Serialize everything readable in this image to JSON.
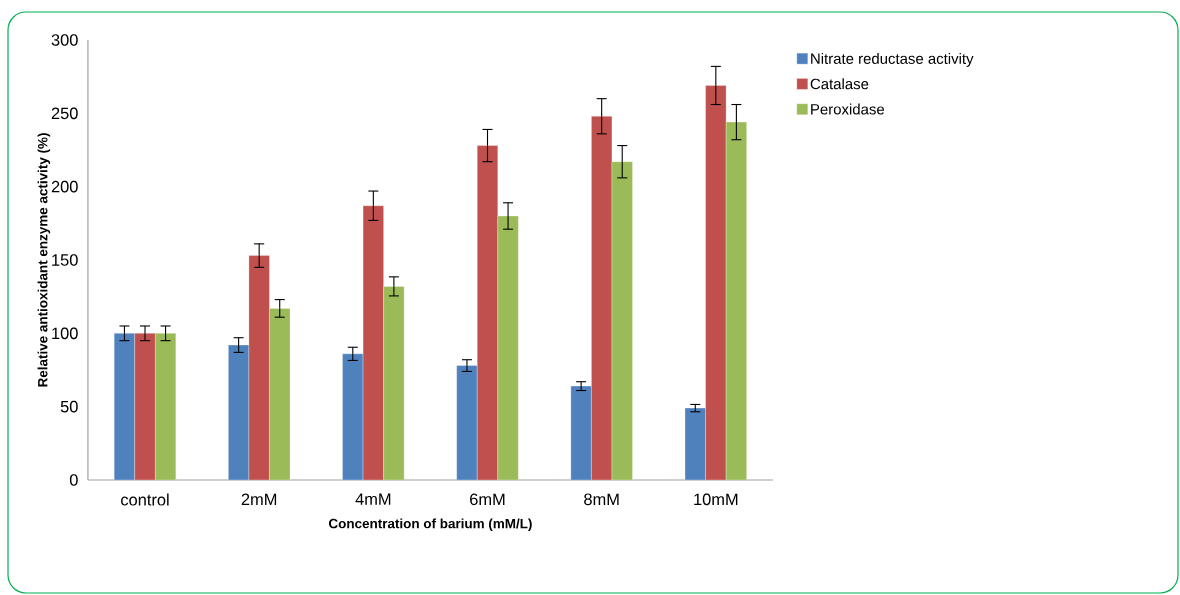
{
  "chart_data": {
    "type": "bar",
    "xlabel": "Concentration of barium (mM/L)",
    "ylabel": "Relative antioxidant enzyme activity (%)",
    "categories": [
      "control",
      "2mM",
      "4mM",
      "6mM",
      "8mM",
      "10mM"
    ],
    "series": [
      {
        "name": "Nitrate reductase activity",
        "color": "#4f81bd",
        "values": [
          100,
          92,
          86,
          78,
          64,
          49
        ],
        "errors": [
          5,
          5,
          4.5,
          4,
          3,
          2.5
        ]
      },
      {
        "name": "Catalase",
        "color": "#c0504d",
        "values": [
          100,
          153,
          187,
          228,
          248,
          269
        ],
        "errors": [
          5,
          8,
          10,
          11,
          12,
          13
        ]
      },
      {
        "name": "Peroxidase",
        "color": "#9bbb59",
        "values": [
          100,
          117,
          132,
          180,
          217,
          244
        ],
        "errors": [
          5,
          6,
          6.5,
          9,
          11,
          12
        ]
      }
    ],
    "ylim": [
      0,
      300
    ],
    "yticks": [
      0,
      50,
      100,
      150,
      200,
      250,
      300
    ],
    "grid": false,
    "legend": "right"
  }
}
